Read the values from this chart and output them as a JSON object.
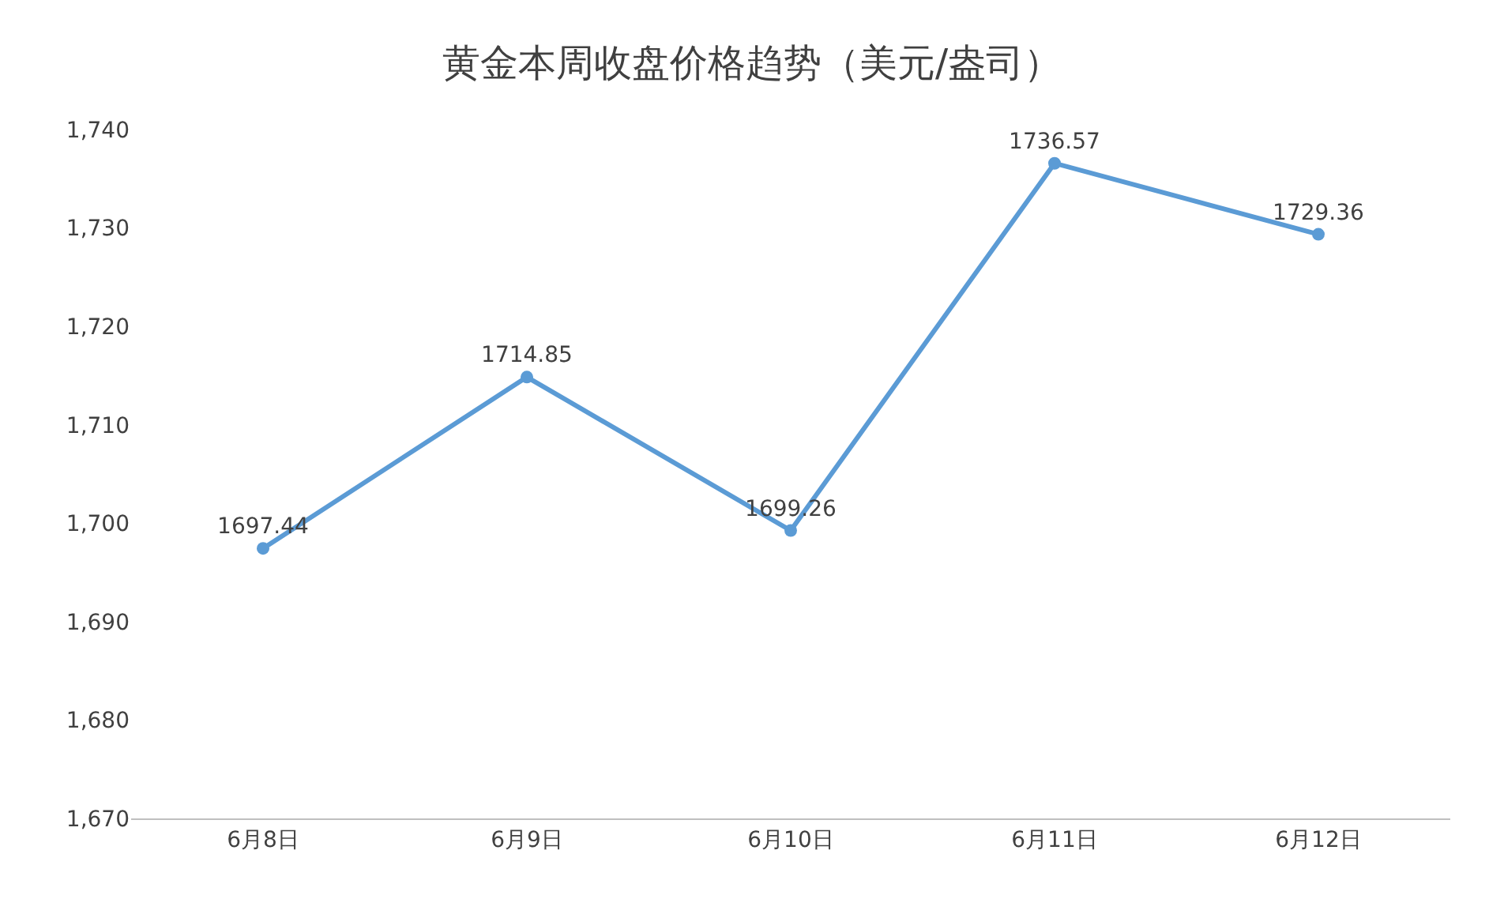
{
  "chart_data": {
    "type": "line",
    "title": "黄金本周收盘价格趋势（美元/盎司）",
    "categories": [
      "6月8日",
      "6月9日",
      "6月10日",
      "6月11日",
      "6月12日"
    ],
    "series": [
      {
        "color": "#5b9bd5",
        "values": [
          1697.44,
          1714.85,
          1699.26,
          1736.57,
          1729.36
        ]
      }
    ],
    "ylim": [
      1670,
      1740
    ],
    "yticks": [
      {
        "value": 1670,
        "label": "1,670"
      },
      {
        "value": 1680,
        "label": "1,680"
      },
      {
        "value": 1690,
        "label": "1,690"
      },
      {
        "value": 1700,
        "label": "1,700"
      },
      {
        "value": 1710,
        "label": "1,710"
      },
      {
        "value": 1720,
        "label": "1,720"
      },
      {
        "value": 1730,
        "label": "1,730"
      },
      {
        "value": 1740,
        "label": "1,740"
      }
    ],
    "data_labels": true,
    "grid": false,
    "legend": false,
    "marker": "circle",
    "line_style": "solid"
  }
}
